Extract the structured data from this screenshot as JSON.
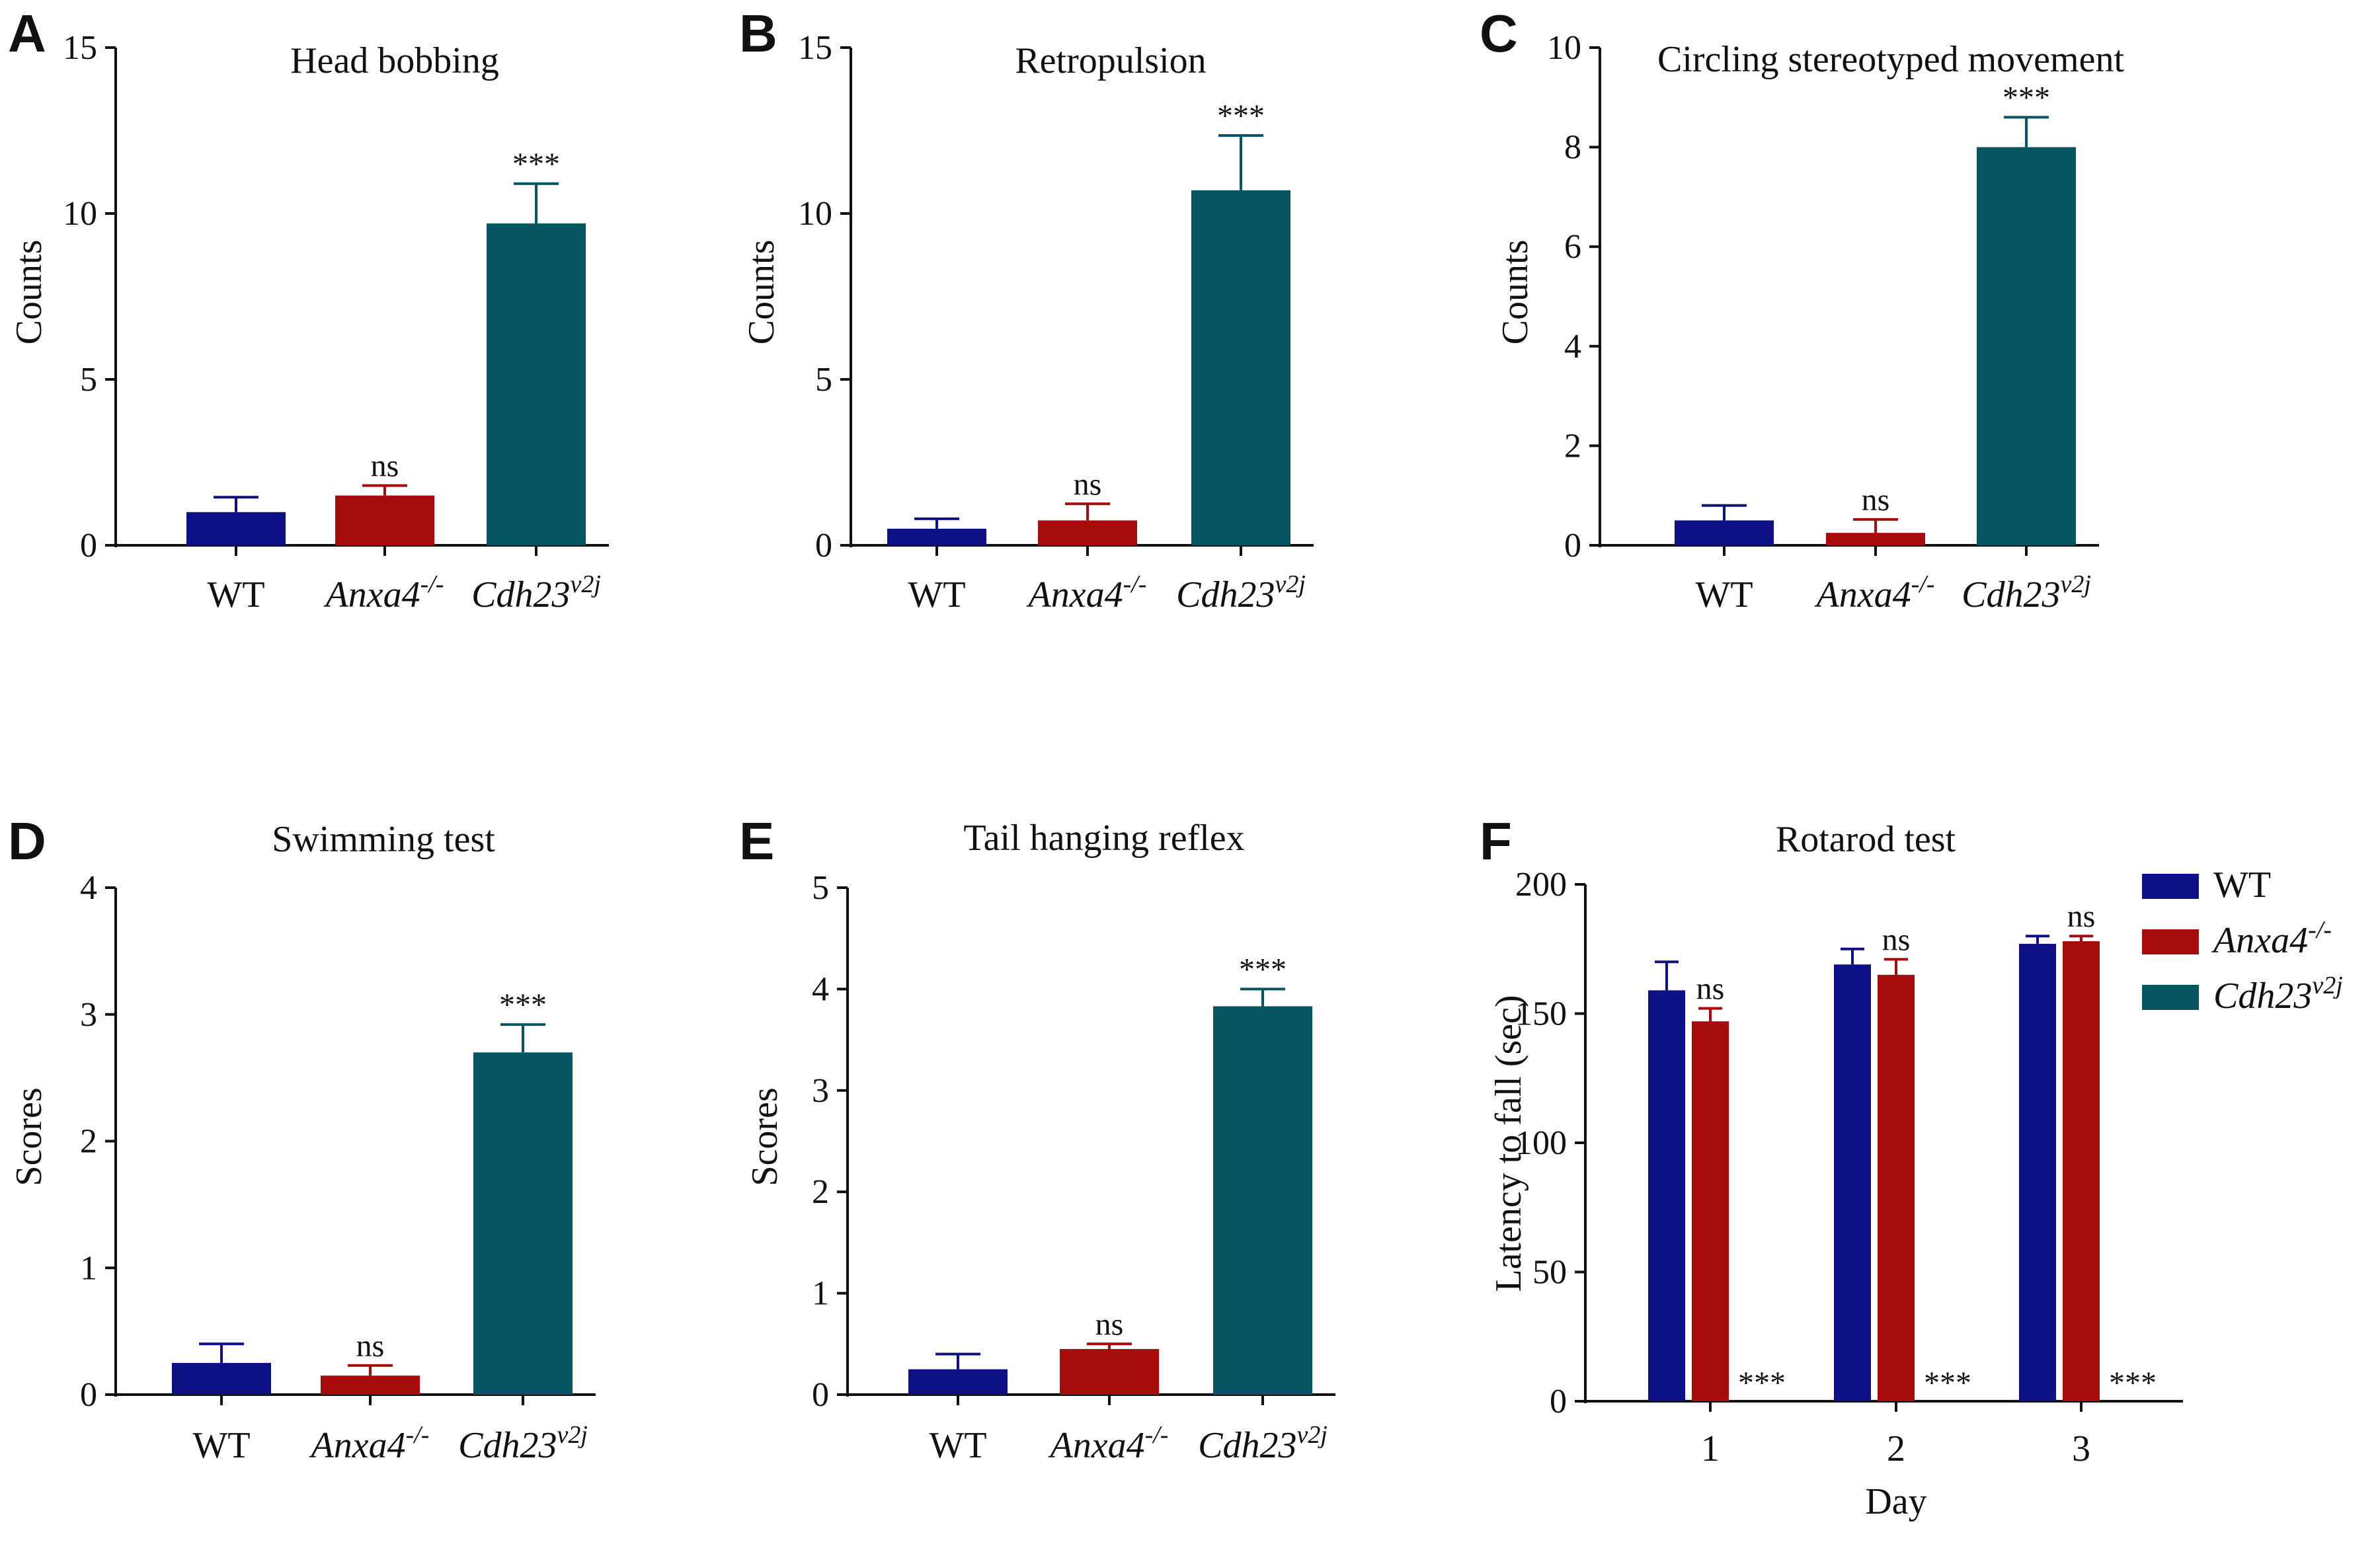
{
  "colors": {
    "wt": "#0e1185",
    "anxa4": "#a60c0c",
    "cdh23": "#075563",
    "axis": "#111111"
  },
  "chart_data": [
    {
      "panel": "A",
      "type": "bar",
      "title": "Head bobbing",
      "xlabel": "",
      "ylabel": "Counts",
      "ylim": [
        0,
        15
      ],
      "yticks": [
        0,
        5,
        10,
        15
      ],
      "categories": [
        {
          "name": "WT",
          "sup": ""
        },
        {
          "name": "Anxa4",
          "sup": "-/-"
        },
        {
          "name": "Cdh23",
          "sup": "v2j"
        }
      ],
      "values": [
        1.0,
        1.5,
        9.7
      ],
      "errors": [
        0.45,
        0.3,
        1.2
      ],
      "annotations": [
        "",
        "ns",
        "***"
      ]
    },
    {
      "panel": "B",
      "type": "bar",
      "title": "Retropulsion",
      "xlabel": "",
      "ylabel": "Counts",
      "ylim": [
        0,
        15
      ],
      "yticks": [
        0,
        5,
        10,
        15
      ],
      "categories": [
        {
          "name": "WT",
          "sup": ""
        },
        {
          "name": "Anxa4",
          "sup": "-/-"
        },
        {
          "name": "Cdh23",
          "sup": "v2j"
        }
      ],
      "values": [
        0.5,
        0.75,
        10.7
      ],
      "errors": [
        0.3,
        0.5,
        1.65
      ],
      "annotations": [
        "",
        "ns",
        "***"
      ]
    },
    {
      "panel": "C",
      "type": "bar",
      "title": "Circling stereotyped movement",
      "xlabel": "",
      "ylabel": "Counts",
      "ylim": [
        0,
        10
      ],
      "yticks": [
        0,
        2,
        4,
        6,
        8,
        10
      ],
      "categories": [
        {
          "name": "WT",
          "sup": ""
        },
        {
          "name": "Anxa4",
          "sup": "-/-"
        },
        {
          "name": "Cdh23",
          "sup": "v2j"
        }
      ],
      "values": [
        0.5,
        0.25,
        8.0
      ],
      "errors": [
        0.3,
        0.27,
        0.6
      ],
      "annotations": [
        "",
        "ns",
        "***"
      ]
    },
    {
      "panel": "D",
      "type": "bar",
      "title": "Swimming test",
      "xlabel": "",
      "ylabel": "Scores",
      "ylim": [
        0,
        4
      ],
      "yticks": [
        0,
        1,
        2,
        3,
        4
      ],
      "categories": [
        {
          "name": "WT",
          "sup": ""
        },
        {
          "name": "Anxa4",
          "sup": "-/-"
        },
        {
          "name": "Cdh23",
          "sup": "v2j"
        }
      ],
      "values": [
        0.25,
        0.15,
        2.7
      ],
      "errors": [
        0.15,
        0.08,
        0.22
      ],
      "annotations": [
        "",
        "ns",
        "***"
      ]
    },
    {
      "panel": "E",
      "type": "bar",
      "title": "Tail hanging reflex",
      "xlabel": "",
      "ylabel": "Scores",
      "ylim": [
        0,
        5
      ],
      "yticks": [
        0,
        1,
        2,
        3,
        4,
        5
      ],
      "categories": [
        {
          "name": "WT",
          "sup": ""
        },
        {
          "name": "Anxa4",
          "sup": "-/-"
        },
        {
          "name": "Cdh23",
          "sup": "v2j"
        }
      ],
      "values": [
        0.25,
        0.45,
        3.83
      ],
      "errors": [
        0.15,
        0.05,
        0.17
      ],
      "annotations": [
        "",
        "ns",
        "***"
      ]
    },
    {
      "panel": "F",
      "type": "bar",
      "title": "Rotarod test",
      "xlabel": "Day",
      "ylabel": "Latency to fall (sec)",
      "ylim": [
        0,
        200
      ],
      "yticks": [
        0,
        50,
        100,
        150,
        200
      ],
      "categories": [
        "1",
        "2",
        "3"
      ],
      "series": [
        {
          "name": "WT",
          "sup": "",
          "values": [
            159,
            169,
            177
          ],
          "errors": [
            11,
            6,
            3
          ],
          "annotations": [
            "",
            "",
            ""
          ]
        },
        {
          "name": "Anxa4",
          "sup": "-/-",
          "values": [
            147,
            165,
            178
          ],
          "errors": [
            5,
            6,
            2
          ],
          "annotations": [
            "ns",
            "ns",
            "ns"
          ]
        },
        {
          "name": "Cdh23",
          "sup": "v2j",
          "values": [
            0,
            0,
            0
          ],
          "errors": [
            0,
            0,
            0
          ],
          "annotations": [
            "***",
            "***",
            "***"
          ]
        }
      ],
      "legend": "top-right"
    }
  ]
}
